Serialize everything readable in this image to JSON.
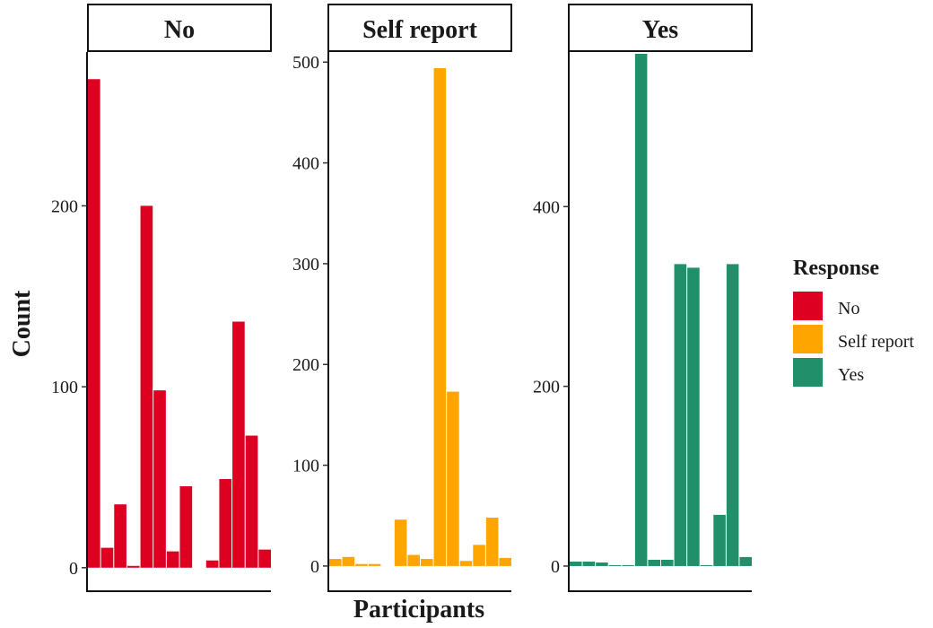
{
  "figure": {
    "ylabel": "Count",
    "xlabel": "Participants"
  },
  "legend": {
    "title": "Response",
    "items": [
      {
        "label": "No",
        "color": "#DD0020"
      },
      {
        "label": "Self report",
        "color": "#FFA500"
      },
      {
        "label": "Yes",
        "color": "#21906A"
      }
    ]
  },
  "chart_data": [
    {
      "type": "bar",
      "title": "No",
      "color": "#DD0020",
      "x": [
        1,
        2,
        3,
        4,
        5,
        6,
        7,
        8,
        9,
        10,
        11,
        12,
        13,
        14
      ],
      "values": [
        270,
        11,
        35,
        1,
        200,
        98,
        9,
        45,
        0,
        4,
        49,
        136,
        73,
        10
      ],
      "yticks": [
        0,
        100,
        200
      ],
      "ylim": [
        -13,
        285
      ]
    },
    {
      "type": "bar",
      "title": "Self report",
      "color": "#FFA500",
      "x": [
        1,
        2,
        3,
        4,
        5,
        6,
        7,
        8,
        9,
        10,
        11,
        12,
        13,
        14
      ],
      "values": [
        7,
        9,
        2,
        2,
        0,
        46,
        11,
        7,
        494,
        173,
        5,
        21,
        48,
        8
      ],
      "yticks": [
        0,
        100,
        200,
        300,
        400,
        500
      ],
      "ylim": [
        -25,
        510
      ]
    },
    {
      "type": "bar",
      "title": "Yes",
      "color": "#21906A",
      "x": [
        1,
        2,
        3,
        4,
        5,
        6,
        7,
        8,
        9,
        10,
        11,
        12,
        13,
        14
      ],
      "values": [
        5,
        5,
        4,
        1,
        1,
        570,
        7,
        7,
        336,
        332,
        1,
        57,
        336,
        10
      ],
      "yticks": [
        0,
        200,
        400
      ],
      "ylim": [
        -28,
        572
      ]
    }
  ]
}
